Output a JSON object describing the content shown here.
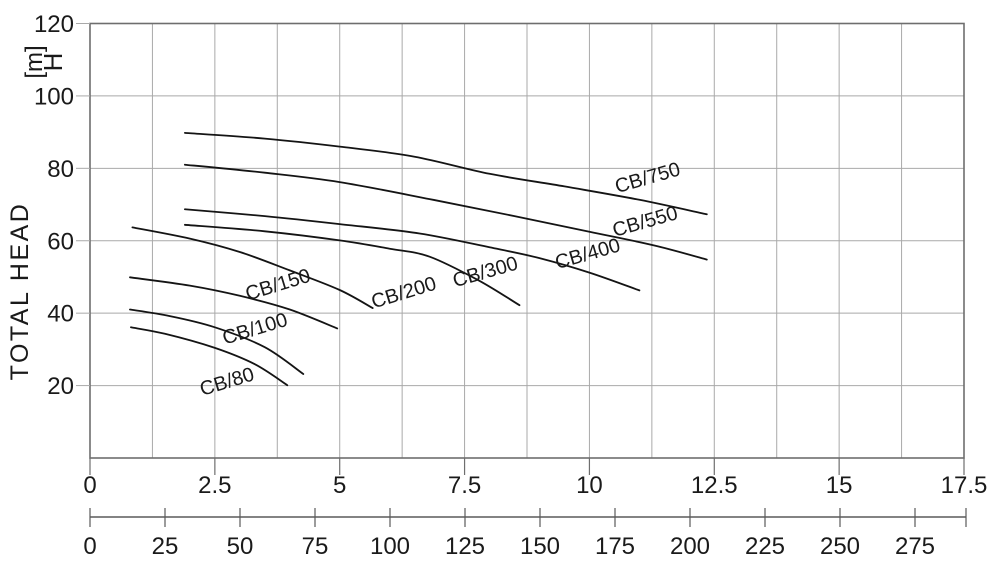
{
  "page": {
    "background": "#ffffff"
  },
  "chart_data": {
    "type": "line",
    "title": "",
    "y_axis": {
      "title": "TOTAL HEAD",
      "unit_symbol": "H",
      "unit_bracket": "[m]",
      "min": 0,
      "max": 120,
      "tick_labels": [
        "20",
        "40",
        "60",
        "80",
        "100",
        "120"
      ],
      "gridline_step": 20,
      "grid": true
    },
    "x_axis_top": {
      "min": 0,
      "max": 17.5,
      "tick_labels": [
        "0",
        "2.5",
        "5",
        "7.5",
        "10",
        "12.5",
        "15",
        "17.5"
      ],
      "tick_step": 2.5,
      "gridline_step": 1.25,
      "grid": true
    },
    "x_axis_bottom": {
      "min": 0,
      "max": 275,
      "tick_labels": [
        "0",
        "25",
        "50",
        "75",
        "100",
        "125",
        "150",
        "175",
        "200",
        "225",
        "250",
        "275"
      ],
      "tick_step": 25,
      "has_unlabeled_end_tick": true
    },
    "legend_position": "labels-on-curves",
    "series": [
      {
        "label": "CB/750",
        "points": [
          [
            1.9,
            89.8
          ],
          [
            3.5,
            88.2
          ],
          [
            5,
            86.0
          ],
          [
            6.5,
            83.2
          ],
          [
            8,
            78.5
          ],
          [
            9.5,
            75.0
          ],
          [
            11,
            71.3
          ],
          [
            12.35,
            67.3
          ]
        ],
        "label_at": {
          "x": 11.2,
          "y": 77.6
        },
        "label_rotation": -16
      },
      {
        "label": "CB/550",
        "points": [
          [
            1.9,
            81.0
          ],
          [
            3.5,
            78.8
          ],
          [
            5,
            76.2
          ],
          [
            6.8,
            71.5
          ],
          [
            8.5,
            66.8
          ],
          [
            10,
            62.5
          ],
          [
            11.3,
            58.7
          ],
          [
            12.35,
            54.8
          ]
        ],
        "label_at": {
          "x": 11.15,
          "y": 65.5
        },
        "label_rotation": -16
      },
      {
        "label": "CB/400",
        "points": [
          [
            1.9,
            68.7
          ],
          [
            3.5,
            66.8
          ],
          [
            5,
            64.6
          ],
          [
            6.6,
            62.0
          ],
          [
            8,
            58.2
          ],
          [
            9,
            55.2
          ],
          [
            10,
            51.2
          ],
          [
            11,
            46.3
          ]
        ],
        "label_at": {
          "x": 10.0,
          "y": 56.6
        },
        "label_rotation": -16
      },
      {
        "label": "CB/300",
        "points": [
          [
            1.9,
            64.4
          ],
          [
            3.5,
            62.6
          ],
          [
            5,
            60.1
          ],
          [
            6,
            57.8
          ],
          [
            6.8,
            55.6
          ],
          [
            7.8,
            48.9
          ],
          [
            8.6,
            42.2
          ]
        ],
        "label_at": {
          "x": 7.95,
          "y": 51.6
        },
        "label_rotation": -16
      },
      {
        "label": "CB/200",
        "points": [
          [
            0.85,
            63.7
          ],
          [
            2,
            60.6
          ],
          [
            3,
            56.9
          ],
          [
            4,
            51.8
          ],
          [
            5,
            46.4
          ],
          [
            5.66,
            41.4
          ]
        ],
        "label_at": {
          "x": 6.32,
          "y": 45.9
        },
        "label_rotation": -17
      },
      {
        "label": "CB/150",
        "points": [
          [
            0.8,
            49.9
          ],
          [
            2,
            47.6
          ],
          [
            3,
            44.8
          ],
          [
            4,
            41.0
          ],
          [
            4.95,
            35.8
          ]
        ],
        "label_at": {
          "x": 3.8,
          "y": 48.1
        },
        "label_rotation": -17
      },
      {
        "label": "CB/100",
        "points": [
          [
            0.8,
            41.0
          ],
          [
            1.6,
            39.2
          ],
          [
            2.5,
            36.1
          ],
          [
            3.5,
            30.6
          ],
          [
            4.27,
            23.2
          ]
        ],
        "label_at": {
          "x": 3.34,
          "y": 35.9
        },
        "label_rotation": -17
      },
      {
        "label": "CB/80",
        "points": [
          [
            0.82,
            36.1
          ],
          [
            1.5,
            34.3
          ],
          [
            2.5,
            30.4
          ],
          [
            3.3,
            25.9
          ],
          [
            3.95,
            20.1
          ]
        ],
        "label_at": {
          "x": 2.78,
          "y": 21.3
        },
        "label_rotation": -17
      }
    ],
    "styles": {
      "curve_color": "#141414",
      "grid_color": "#a9a9a9",
      "border_color": "#6e6e6e",
      "axis2_color": "#5a5a5a",
      "text_color": "#1a1a1a"
    }
  }
}
